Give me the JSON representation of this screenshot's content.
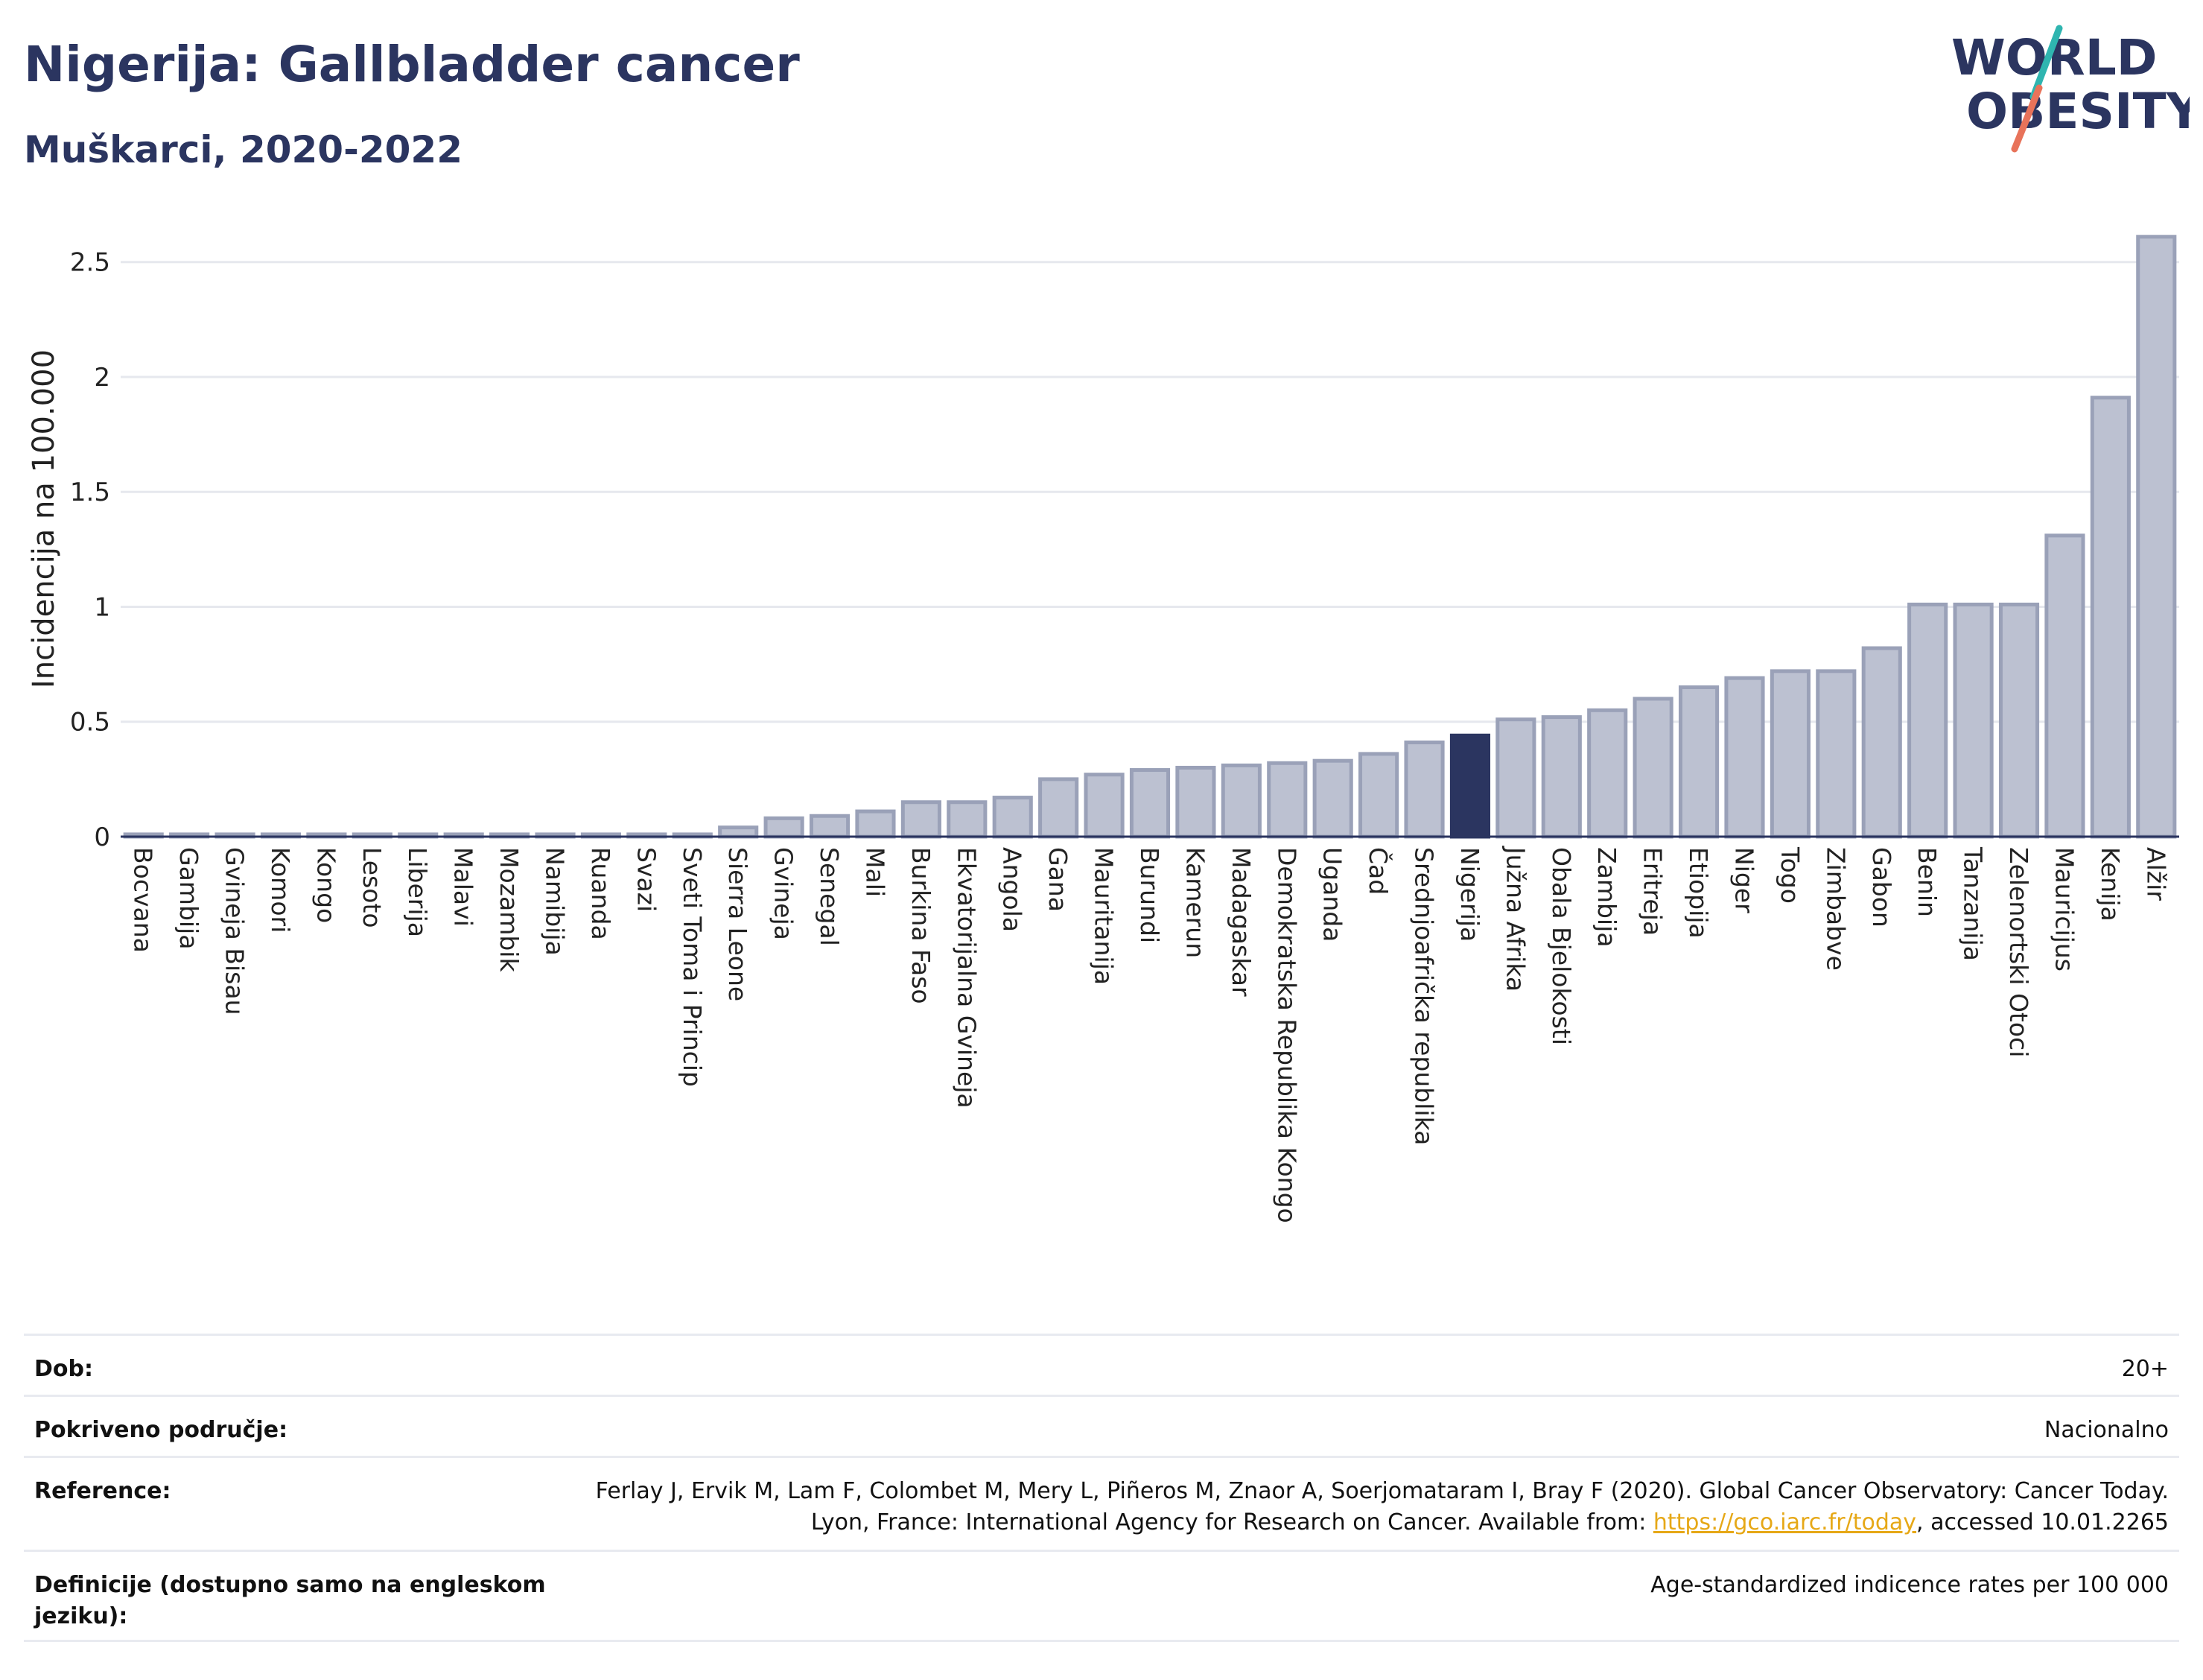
{
  "header": {
    "title": "Nigerija: Gallbladder cancer",
    "subtitle": "Muškarci, 2020-2022"
  },
  "logo": {
    "line1": "WORLD",
    "line2": "OBESITY",
    "colors": {
      "text": "#2b3560",
      "accent_teal": "#2fb5b0",
      "accent_coral": "#e8735a"
    }
  },
  "colors": {
    "bar_default": "#bcc1d1",
    "bar_default_stroke": "#9aa1b8",
    "bar_highlight": "#2b3560",
    "axis": "#2b3560",
    "grid": "#e6e8ee"
  },
  "chart_data": {
    "type": "bar",
    "title": "",
    "xlabel": "",
    "ylabel": "Incidencija na 100.000",
    "ylim": [
      0,
      2.7
    ],
    "yticks": [
      0,
      0.5,
      1,
      1.5,
      2,
      2.5
    ],
    "ytick_labels": [
      "0",
      "0.5",
      "1",
      "1.5",
      "2",
      "2.5"
    ],
    "grid": true,
    "highlight": "Nigerija",
    "categories": [
      "Bocvana",
      "Gambija",
      "Gvineja Bisau",
      "Komori",
      "Kongo",
      "Lesoto",
      "Liberija",
      "Malavi",
      "Mozambik",
      "Namibija",
      "Ruanda",
      "Svazi",
      "Sveti Toma i Princip",
      "Sierra Leone",
      "Gvineja",
      "Senegal",
      "Mali",
      "Burkina Faso",
      "Ekvatorijalna Gvineja",
      "Angola",
      "Gana",
      "Mauritanija",
      "Burundi",
      "Kamerun",
      "Madagaskar",
      "Demokratska Republika Kongo",
      "Uganda",
      "Čad",
      "Srednjoafrička republika",
      "Nigerija",
      "Južna Afrika",
      "Obala Bjelokosti",
      "Zambija",
      "Eritreja",
      "Etiopija",
      "Niger",
      "Togo",
      "Zimbabve",
      "Gabon",
      "Benin",
      "Tanzanija",
      "Zelenortski Otoci",
      "Mauricijus",
      "Kenija",
      "Alžir"
    ],
    "values": [
      0.01,
      0.01,
      0.01,
      0.01,
      0.01,
      0.01,
      0.01,
      0.01,
      0.01,
      0.01,
      0.01,
      0.01,
      0.01,
      0.04,
      0.08,
      0.09,
      0.11,
      0.15,
      0.15,
      0.17,
      0.25,
      0.27,
      0.29,
      0.3,
      0.31,
      0.32,
      0.33,
      0.36,
      0.41,
      0.44,
      0.51,
      0.52,
      0.55,
      0.6,
      0.65,
      0.69,
      0.72,
      0.72,
      0.82,
      1.01,
      1.01,
      1.01,
      1.31,
      1.91,
      2.61
    ]
  },
  "info": {
    "age_label": "Dob:",
    "age_value": "20+",
    "coverage_label": "Pokriveno područje:",
    "coverage_value": "Nacionalno",
    "reference_label": "Reference:",
    "reference_text_1": "Ferlay J, Ervik M, Lam F, Colombet M, Mery L, Piñeros M, Znaor A, Soerjomataram I, Bray F (2020). Global Cancer Observatory: Cancer Today. Lyon, France: International Agency for Research on Cancer. Available from: ",
    "reference_link": "https://gco.iarc.fr/today",
    "reference_text_2": ", accessed 10.01.2265",
    "definitions_label": "Definicije (dostupno samo na engleskom jeziku):",
    "definitions_value": "Age-standardized indicence rates per 100 000"
  }
}
